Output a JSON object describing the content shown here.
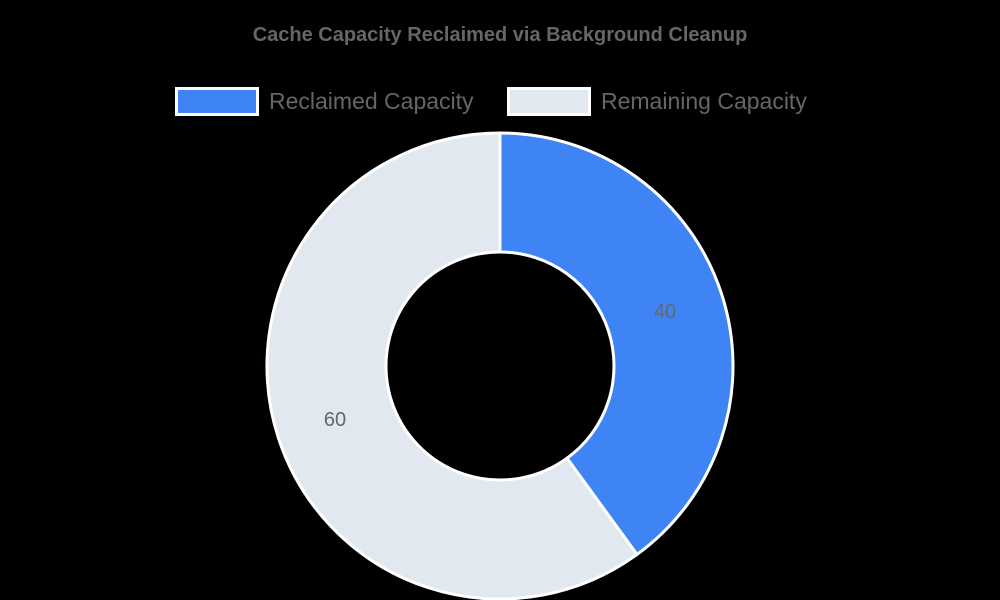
{
  "chart_data": {
    "type": "pie",
    "variant": "doughnut",
    "title": "Cache Capacity Reclaimed via Background Cleanup",
    "categories": [
      "Reclaimed Capacity",
      "Remaining Capacity"
    ],
    "values": [
      40,
      60
    ],
    "colors": [
      "#3e84f4",
      "#e2e8f0"
    ],
    "data_labels": [
      "40",
      "60"
    ],
    "legend_position": "top",
    "start_angle_deg": 0,
    "direction": "clockwise",
    "border_color": "#ffffff",
    "background": "#000000"
  },
  "title": "Cache Capacity Reclaimed via Background Cleanup",
  "legend": [
    {
      "label": "Reclaimed Capacity",
      "color": "#3e84f4"
    },
    {
      "label": "Remaining Capacity",
      "color": "#e2e8f0"
    }
  ],
  "slices": [
    {
      "label": "40"
    },
    {
      "label": "60"
    }
  ]
}
